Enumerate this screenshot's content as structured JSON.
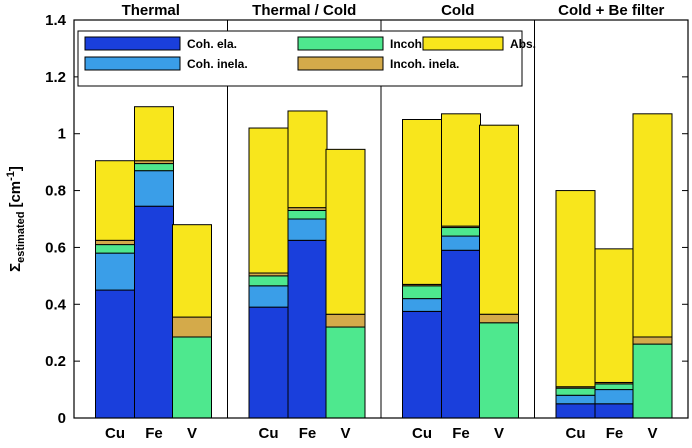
{
  "chart_data": {
    "type": "bar",
    "stacked": true,
    "groups": [
      "Thermal",
      "Thermal / Cold",
      "Cold",
      "Cold + Be filter"
    ],
    "categories": [
      "Cu",
      "Fe",
      "V",
      "Cu",
      "Fe",
      "V",
      "Cu",
      "Fe",
      "V",
      "Cu",
      "Fe",
      "V"
    ],
    "y_label": "Σ",
    "y_label_sub": "estimated",
    "y_label_unit": "[cm",
    "y_label_sup": "-1",
    "y_label_end": "]",
    "ylim": [
      0,
      1.4
    ],
    "yticks": [
      0,
      0.2,
      0.4,
      0.6,
      0.8,
      1,
      1.2,
      1.4
    ],
    "series": [
      {
        "name": "Coh. ela.",
        "color": "#1a3fdc",
        "values": [
          0.45,
          0.745,
          0,
          0.39,
          0.625,
          0,
          0.375,
          0.59,
          0,
          0.05,
          0.05,
          0
        ]
      },
      {
        "name": "Coh. inela.",
        "color": "#3a9ee8",
        "values": [
          0.13,
          0.125,
          0,
          0.075,
          0.075,
          0,
          0.045,
          0.05,
          0,
          0.03,
          0.05,
          0
        ]
      },
      {
        "name": "Incoh. ela.",
        "color": "#4ee88e",
        "values": [
          0.03,
          0.025,
          0.285,
          0.035,
          0.03,
          0.32,
          0.045,
          0.03,
          0.335,
          0.025,
          0.02,
          0.26
        ]
      },
      {
        "name": "Incoh. inela.",
        "color": "#d4aa4a",
        "values": [
          0.015,
          0.01,
          0.07,
          0.01,
          0.01,
          0.045,
          0.005,
          0.005,
          0.03,
          0.005,
          0.005,
          0.025
        ]
      },
      {
        "name": "Abs.",
        "color": "#f8e61c",
        "values": [
          0.28,
          0.19,
          0.325,
          0.51,
          0.34,
          0.58,
          0.58,
          0.395,
          0.665,
          0.69,
          0.47,
          0.785
        ]
      }
    ]
  }
}
